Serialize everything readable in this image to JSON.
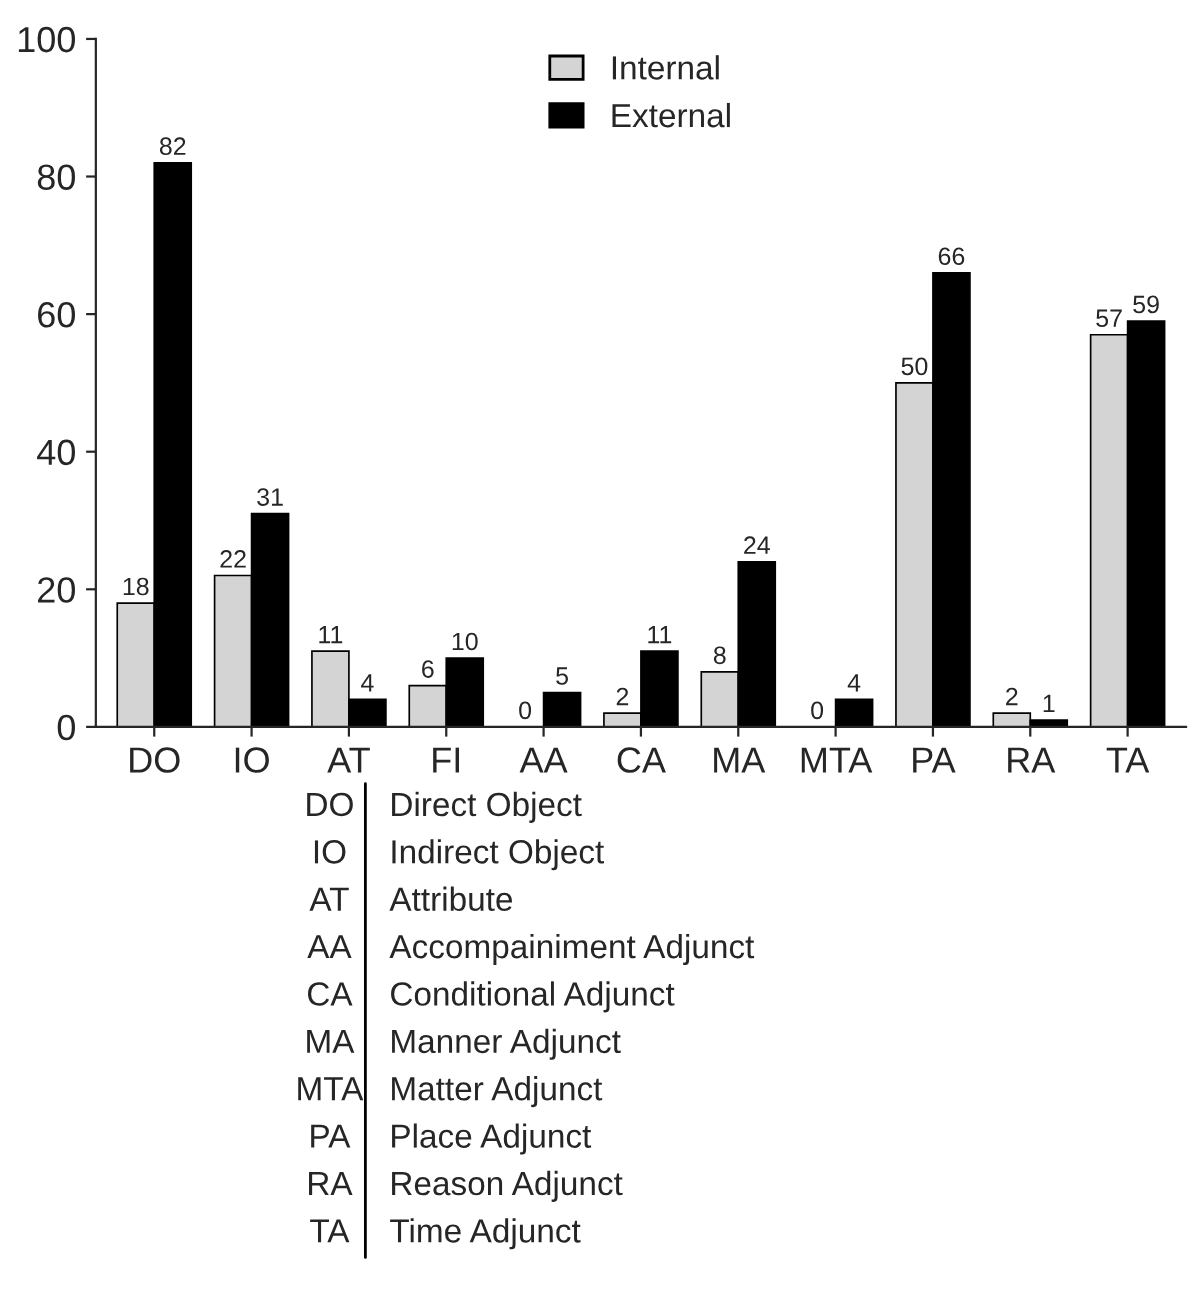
{
  "chart_data": {
    "type": "bar",
    "categories": [
      "DO",
      "IO",
      "AT",
      "FI",
      "AA",
      "CA",
      "MA",
      "MTA",
      "PA",
      "RA",
      "TA"
    ],
    "series": [
      {
        "name": "Internal",
        "color": "#d4d4d4",
        "values": [
          18,
          22,
          11,
          6,
          0,
          2,
          8,
          0,
          50,
          2,
          57
        ]
      },
      {
        "name": "External",
        "color": "#000000",
        "values": [
          82,
          31,
          4,
          10,
          5,
          11,
          24,
          4,
          66,
          1,
          59
        ]
      }
    ],
    "ylim": [
      0,
      100
    ],
    "yticks": [
      0,
      20,
      40,
      60,
      80,
      100
    ],
    "data_labels": true,
    "legend": "top",
    "grid": false,
    "annotations": [
      "DO",
      "Direct Object",
      "IO",
      "Indirect Object",
      "AT",
      "Attribute",
      "AA",
      "Accompainiment Adjunct",
      "CA",
      "Conditional Adjunct",
      "MA",
      "Manner Adjunct",
      "MTA",
      "Matter Adjunct",
      "PA",
      "Place Adjunct",
      "RA",
      "Reason Adjunct",
      "TA",
      "Time Adjunct"
    ]
  }
}
